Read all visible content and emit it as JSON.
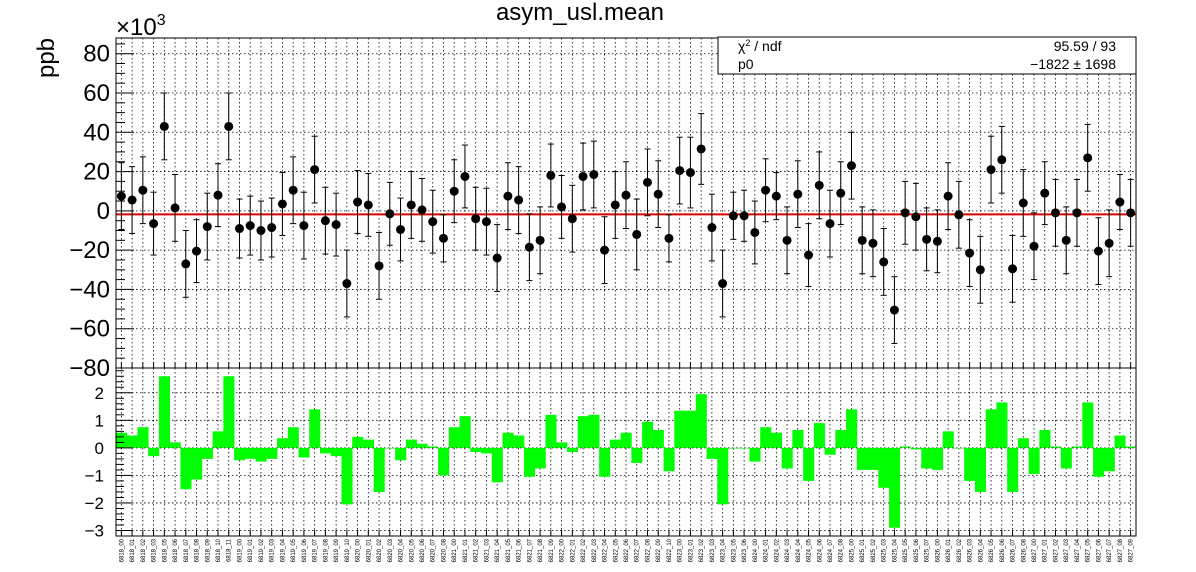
{
  "chart_data": {
    "type": "scatter",
    "title": "asym_usl.mean",
    "ylabel": "ppb",
    "y_multiplier": "×10",
    "y_exponent": "3",
    "ylim": [
      -80,
      88
    ],
    "y_ticks": [
      -80,
      -60,
      -40,
      -20,
      0,
      20,
      40,
      60,
      80
    ],
    "y_tick_labels": [
      "−80",
      "−60",
      "−40",
      "−20",
      "0",
      "20",
      "40",
      "60",
      "80"
    ],
    "fit": {
      "chi2_label": "χ",
      "chi2_sup": "2",
      "ndf_label": " / ndf",
      "chi2_value": "95.59 / 93",
      "p0_label": "p0",
      "p0_value": "−1822 ±  1698",
      "value": -1.822,
      "color": "#dd0000"
    },
    "residual": {
      "ylim": [
        -3.2,
        2.9
      ],
      "y_ticks": [
        -3,
        -2,
        -1,
        0,
        1,
        2
      ],
      "y_tick_labels": [
        "−3",
        "−2",
        "−1",
        "0",
        "1",
        "2"
      ],
      "color": "#00ff00"
    },
    "x_labels": [
      "6818_00",
      "6818_01",
      "6818_02",
      "6818_03",
      "6818_05",
      "6818_06",
      "6818_07",
      "6818_08",
      "6818_09",
      "6818_10",
      "6818_11",
      "6819_00",
      "6819_01",
      "6819_02",
      "6819_03",
      "6819_04",
      "6819_05",
      "6819_06",
      "6819_07",
      "6819_08",
      "6819_09",
      "6819_10",
      "6820_00",
      "6820_01",
      "6820_02",
      "6820_03",
      "6820_04",
      "6820_05",
      "6820_06",
      "6820_07",
      "6820_08",
      "6821_00",
      "6821_01",
      "6821_02",
      "6821_03",
      "6821_04",
      "6821_05",
      "6821_06",
      "6821_07",
      "6821_08",
      "6821_09",
      "6822_00",
      "6822_01",
      "6822_02",
      "6822_03",
      "6822_04",
      "6822_05",
      "6822_06",
      "6822_07",
      "6822_08",
      "6822_09",
      "6822_10",
      "6823_00",
      "6823_01",
      "6823_02",
      "6823_03",
      "6823_04",
      "6823_05",
      "6823_06",
      "6824_00",
      "6824_01",
      "6824_02",
      "6824_03",
      "6824_04",
      "6824_05",
      "6824_06",
      "6824_07",
      "6824_08",
      "6825_00",
      "6825_01",
      "6825_02",
      "6825_03",
      "6825_04",
      "6825_05",
      "6825_06",
      "6825_07",
      "6826_00",
      "6826_01",
      "6826_02",
      "6826_03",
      "6826_04",
      "6826_05",
      "6826_06",
      "6826_07",
      "6826_08",
      "6827_00",
      "6827_01",
      "6827_02",
      "6827_03",
      "6827_04",
      "6827_05",
      "6827_06",
      "6827_07",
      "6827_08",
      "6827_09"
    ],
    "series": [
      {
        "values": [
          7.5,
          5.5,
          10.5,
          -6.5,
          43,
          1.5,
          -27,
          -20.5,
          -8,
          8,
          43,
          -9,
          -7.5,
          -10,
          -8.5,
          3.5,
          10.5,
          -7.5,
          21,
          -5,
          -7,
          -37,
          4.5,
          3,
          -28,
          -1.5,
          -9.5,
          3,
          0.5,
          -5.5,
          -14,
          10,
          17.5,
          -4,
          -5.5,
          -24,
          7.5,
          5.5,
          -18.5,
          -15,
          18,
          2,
          -4,
          17.5,
          18.5,
          -20,
          3,
          8,
          -12,
          14.5,
          8.5,
          -14,
          20.5,
          19.5,
          31.5,
          -8.5,
          -37,
          -2.5,
          -2.5,
          -11,
          10.5,
          7.5,
          -15,
          8.5,
          -22.5,
          13,
          -6.5,
          9,
          23,
          -15,
          -16.5,
          -26,
          -50.5,
          -1,
          -3,
          -14.5,
          -15.5,
          7.5,
          -2,
          -21.5,
          -30,
          21,
          26,
          -29.5,
          4,
          -18,
          9,
          -1,
          -15,
          -1,
          27,
          -20.5,
          -16.5,
          4.5,
          -1
        ],
        "errors": [
          17,
          17,
          17,
          16,
          17,
          17,
          17,
          16,
          17,
          16,
          17,
          15,
          15,
          15,
          15,
          16,
          17,
          17,
          17,
          17,
          16,
          17,
          16,
          16,
          17,
          16,
          16,
          17,
          16,
          16,
          12,
          16,
          16,
          16,
          17,
          17,
          17,
          17,
          17,
          17,
          16,
          16,
          17,
          17,
          17,
          17,
          17,
          17,
          18,
          17,
          17,
          12,
          17,
          18,
          18,
          17,
          17,
          12,
          13,
          16,
          16,
          12,
          17,
          17,
          16,
          17,
          17,
          16,
          17,
          17,
          17,
          17,
          17,
          16,
          17,
          16,
          16,
          17,
          17,
          17,
          17,
          17,
          17,
          17,
          17,
          17,
          16,
          17,
          17,
          17,
          17,
          17,
          17,
          14,
          17
        ],
        "residuals": [
          0.55,
          0.45,
          0.75,
          -0.3,
          2.6,
          0.2,
          -1.5,
          -1.15,
          -0.4,
          0.6,
          2.6,
          -0.45,
          -0.4,
          -0.5,
          -0.4,
          0.35,
          0.75,
          -0.35,
          1.4,
          -0.2,
          -0.3,
          -2.05,
          0.4,
          0.3,
          -1.6,
          0.0,
          -0.45,
          0.3,
          0.15,
          0.05,
          -1.0,
          0.75,
          1.15,
          -0.15,
          -0.2,
          -1.25,
          0.55,
          0.45,
          -1.05,
          -0.75,
          1.2,
          0.2,
          -0.15,
          1.15,
          1.2,
          -1.05,
          0.3,
          0.55,
          -0.55,
          0.95,
          0.65,
          -0.85,
          1.35,
          1.35,
          1.95,
          -0.4,
          -2.05,
          0.0,
          0.0,
          -0.5,
          0.75,
          0.55,
          -0.75,
          0.65,
          -1.2,
          0.9,
          -0.25,
          0.65,
          1.4,
          -0.8,
          -0.8,
          -1.45,
          -2.9,
          0.05,
          -0.05,
          -0.75,
          -0.8,
          0.6,
          0.0,
          -1.2,
          -1.6,
          1.4,
          1.65,
          -1.6,
          0.35,
          -0.95,
          0.65,
          0.05,
          -0.75,
          0.05,
          1.65,
          -1.05,
          -0.85,
          0.45,
          0.05
        ]
      }
    ]
  }
}
